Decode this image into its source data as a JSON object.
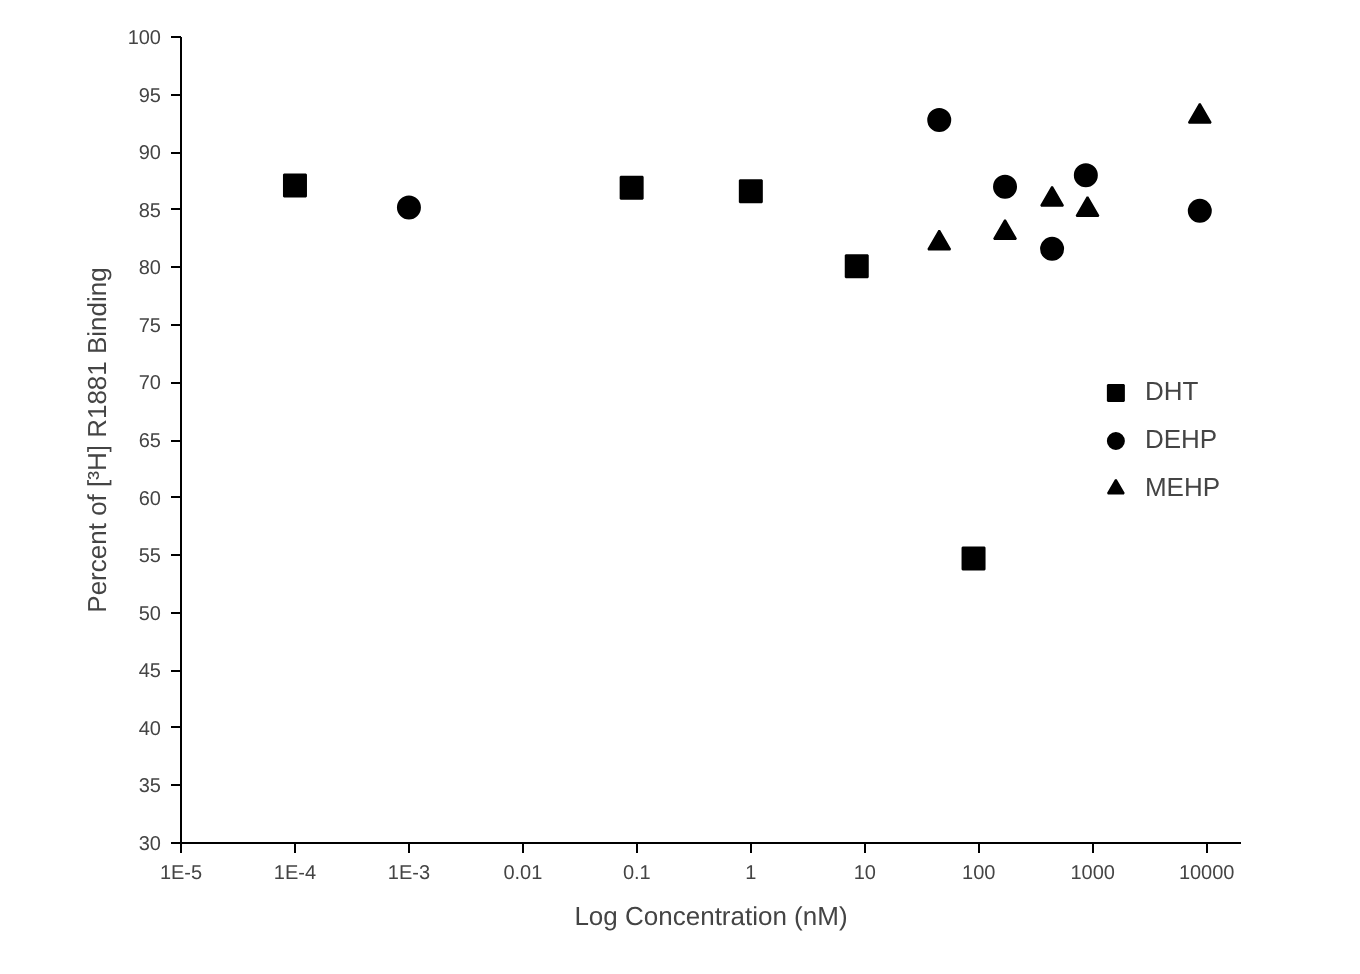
{
  "chart_data": {
    "type": "scatter",
    "xlabel": "Log Concentration (nM)",
    "ylabel": "Percent of [³H] R1881 Binding",
    "log": "x",
    "xlim": [
      1e-05,
      20000
    ],
    "ylim": [
      30,
      100
    ],
    "xticks": [
      {
        "value": 1e-05,
        "label": "1E-5"
      },
      {
        "value": 0.0001,
        "label": "1E-4"
      },
      {
        "value": 0.001,
        "label": "1E-3"
      },
      0.01,
      0.1,
      1,
      10,
      100,
      1000,
      10000
    ],
    "yticks": [
      30,
      35,
      40,
      45,
      50,
      55,
      60,
      65,
      70,
      75,
      80,
      85,
      90,
      95,
      100
    ],
    "grid": false,
    "legend": "right",
    "series": [
      {
        "name": "DHT",
        "color": "#000000",
        "marker": "square",
        "x": [
          0.0001,
          0.09,
          1,
          8.5,
          90
        ],
        "values": [
          87.1,
          86.9,
          86.6,
          80.1,
          54.7
        ]
      },
      {
        "name": "DEHP",
        "color": "#000000",
        "marker": "circle",
        "x": [
          0.001,
          45,
          170,
          440,
          870,
          8700
        ],
        "values": [
          85.2,
          92.8,
          87,
          81.6,
          88,
          84.9
        ]
      },
      {
        "name": "MEHP",
        "color": "#000000",
        "marker": "triangle",
        "x": [
          45,
          170,
          440,
          900,
          8700
        ],
        "values": [
          82.1,
          83,
          85.9,
          85,
          93.1
        ]
      }
    ]
  }
}
